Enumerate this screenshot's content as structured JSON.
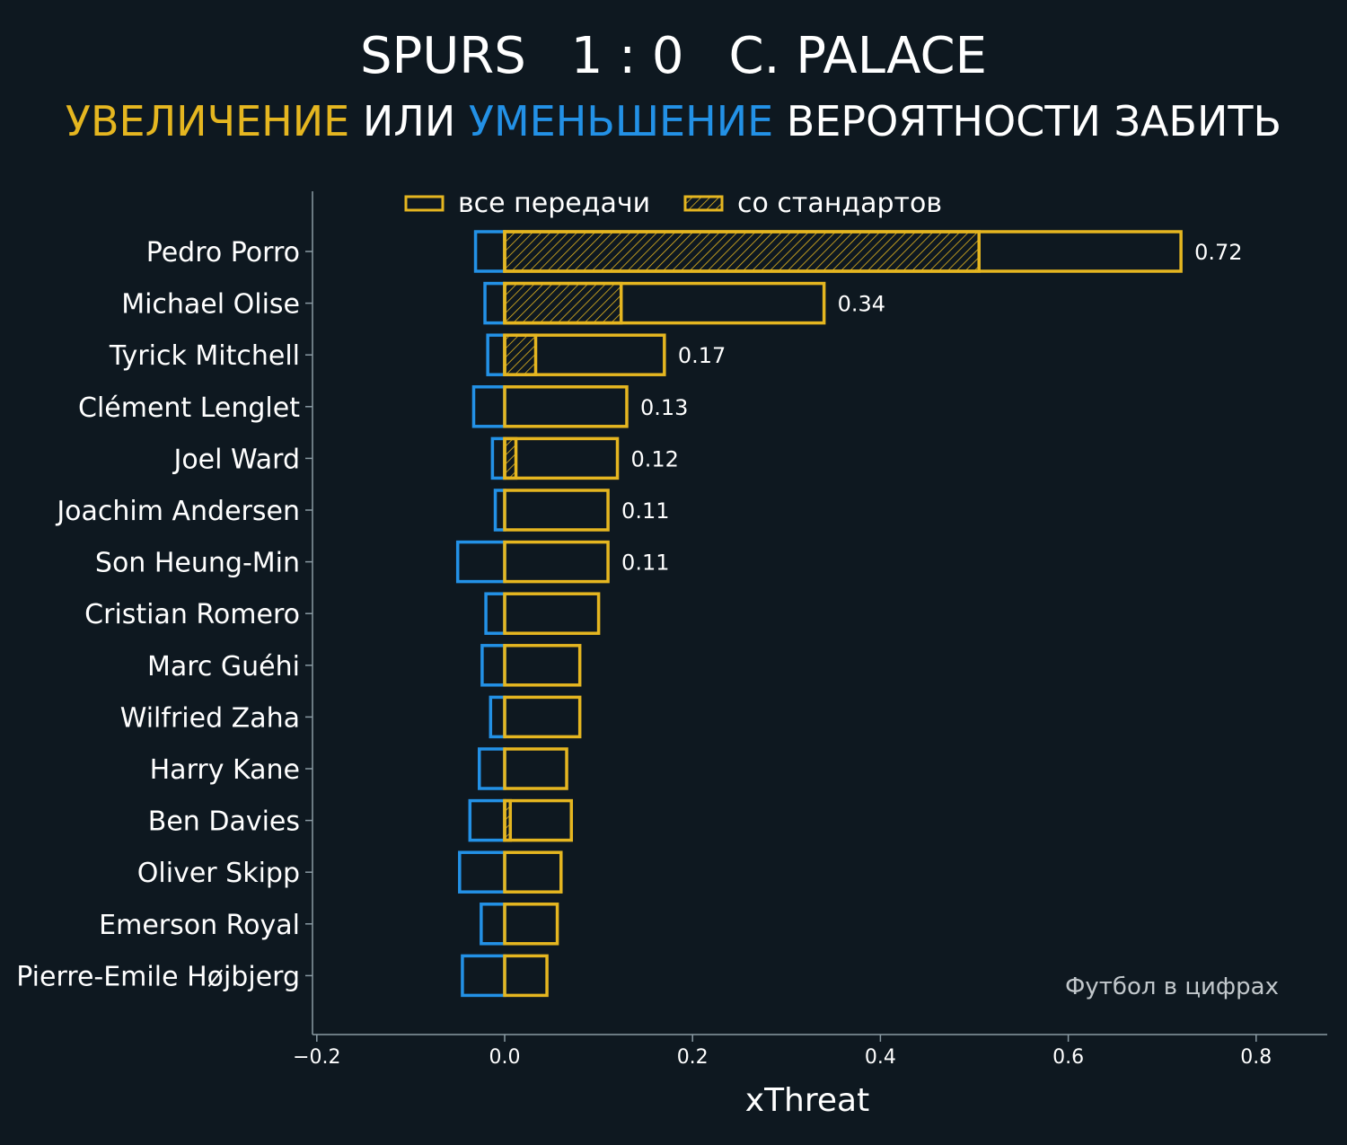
{
  "header": {
    "home_team": "SPURS",
    "score": "1 : 0",
    "away_team": "C. PALACE",
    "subtitle_increase": "УВЕЛИЧЕНИЕ",
    "subtitle_or": "ИЛИ",
    "subtitle_decrease": "УМЕНЬШЕНИЕ",
    "subtitle_rest": "ВЕРОЯТНОСТИ ЗАБИТЬ"
  },
  "colors": {
    "background": "#0e1820",
    "increase": "#e5b620",
    "decrease": "#2391e6",
    "text": "#ffffff",
    "axis": "#8a9aa3",
    "watermark": "#c2c8cc"
  },
  "watermark": "Футбол в цифрах",
  "chart_data": {
    "type": "bar",
    "orientation": "horizontal",
    "title": "",
    "xlabel": "xThreat",
    "ylabel": "",
    "xlim": [
      -0.2,
      0.85
    ],
    "xticks": [
      -0.2,
      0.0,
      0.2,
      0.4,
      0.6,
      0.8
    ],
    "xtick_labels": [
      "−0.2",
      "0.0",
      "0.2",
      "0.4",
      "0.6",
      "0.8"
    ],
    "legend": {
      "placement": "top",
      "entries": [
        "все передачи",
        "со стандартов"
      ]
    },
    "categories": [
      "Pedro Porro",
      "Michael Olise",
      "Tyrick Mitchell",
      "Clément Lenglet",
      "Joel Ward",
      "Joachim Andersen",
      "Son Heung-Min",
      "Cristian Romero",
      "Marc Guéhi",
      "Wilfried Zaha",
      "Harry Kane",
      "Ben Davies",
      "Oliver Skipp",
      "Emerson Royal",
      "Pierre-Emile Højbjerg"
    ],
    "series": [
      {
        "name": "все передачи",
        "values": [
          0.72,
          0.34,
          0.17,
          0.13,
          0.12,
          0.11,
          0.11,
          0.1,
          0.08,
          0.08,
          0.066,
          0.071,
          0.06,
          0.056,
          0.045
        ]
      },
      {
        "name": "со стандартов",
        "values": [
          0.505,
          0.124,
          0.033,
          0.0,
          0.012,
          0.0,
          0.0,
          0.0,
          0.0,
          0.0,
          0.0,
          0.006,
          0.0,
          0.0,
          0.0
        ]
      }
    ],
    "negative_values": [
      -0.031,
      -0.021,
      -0.018,
      -0.033,
      -0.013,
      -0.01,
      -0.05,
      -0.02,
      -0.024,
      -0.015,
      -0.027,
      -0.037,
      -0.048,
      -0.025,
      -0.045
    ],
    "value_labels": [
      "0.72",
      "0.34",
      "0.17",
      "0.13",
      "0.12",
      "0.11",
      "0.11",
      "",
      "",
      "",
      "",
      "",
      "",
      "",
      ""
    ]
  }
}
